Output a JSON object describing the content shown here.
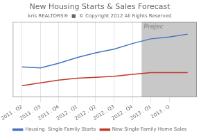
{
  "chart_data": {
    "type": "line",
    "title": "New Housing Starts & Sales Forecast",
    "subtitle": "kris REALTORS®  ■  © Copyright 2012 All Rights Reserved",
    "categories": [
      "2011 . Q2",
      "2011 . Q3",
      "2011 . Q4",
      "2012 . Q1",
      "2012 . Q2",
      "2012 . Q3",
      "2012 . Q4",
      "2013 . Q1",
      "2013 . Q",
      null
    ],
    "series": [
      {
        "name": "Housing  Single Family Starts",
        "color": "#4472c4",
        "values": [
          42,
          41,
          46,
          52,
          57,
          61,
          67,
          72,
          74,
          77
        ]
      },
      {
        "name": "New Single Family Home Sales",
        "color": "#c0392b",
        "values": [
          22,
          25,
          28,
          30,
          31,
          32,
          34,
          36,
          36,
          36
        ]
      }
    ],
    "ylim": [
      10,
      90
    ],
    "grid": true,
    "legend": "bottom",
    "tick_labels": "x",
    "annotations": [
      {
        "text": "Projec",
        "x": "2013 . Q1"
      }
    ]
  }
}
